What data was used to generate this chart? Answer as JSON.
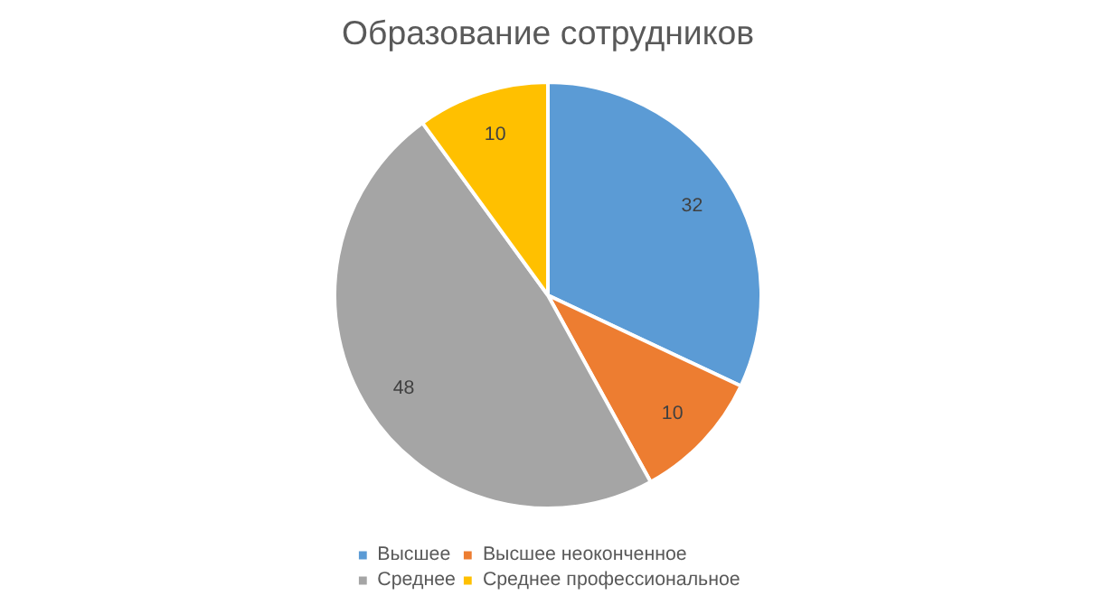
{
  "chart_data": {
    "type": "pie",
    "title": "Образование сотрудников",
    "categories": [
      "Высшее",
      "Высшее неоконченное",
      "Среднее",
      "Среднее профессиональное"
    ],
    "values": [
      32,
      10,
      48,
      10
    ],
    "colors": [
      "#5b9bd5",
      "#ed7d31",
      "#a5a5a5",
      "#ffc000"
    ],
    "data_labels": true,
    "legend": "bottom"
  }
}
